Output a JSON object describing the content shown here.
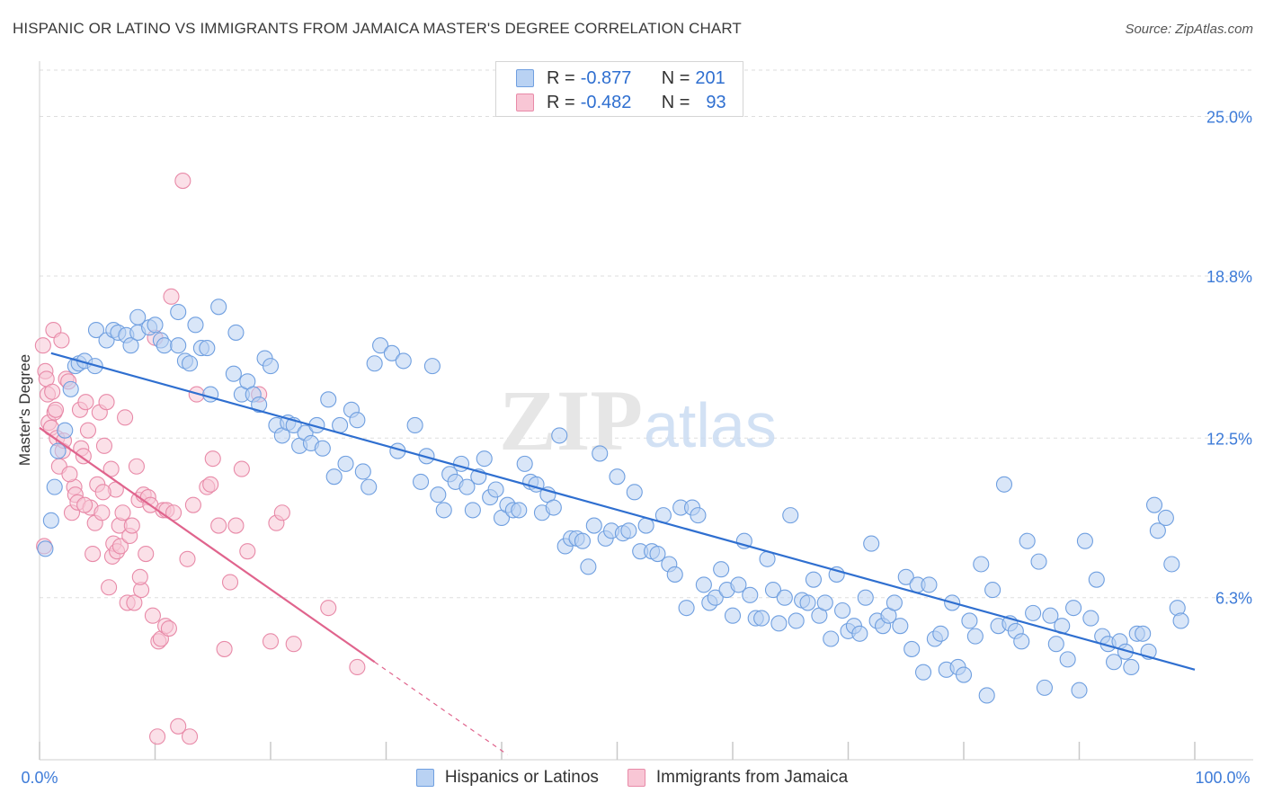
{
  "title": "HISPANIC OR LATINO VS IMMIGRANTS FROM JAMAICA MASTER'S DEGREE CORRELATION CHART",
  "source": "Source: ZipAtlas.com",
  "watermark": {
    "zip": "ZIP",
    "atlas": "atlas"
  },
  "legend_top": {
    "rows": [
      {
        "r_label": "R = ",
        "r_value": "-0.877",
        "n_label": "N = ",
        "n_value": "201",
        "color": "blue"
      },
      {
        "r_label": "R = ",
        "r_value": "-0.482",
        "n_label": "N = ",
        "n_value": "93",
        "color": "pink"
      }
    ]
  },
  "legend_bottom": [
    "Hispanics or Latinos",
    "Immigrants from Jamaica"
  ],
  "colors": {
    "blue_fill": "#b9d2f3",
    "blue_stroke": "#6f9fe0",
    "blue_line": "#2f6fd0",
    "pink_fill": "#f8c6d5",
    "pink_stroke": "#e88aa8",
    "pink_line": "#e0648d",
    "tick_label": "#3d7bd8",
    "grid": "#dddddd"
  },
  "chart_data": {
    "type": "scatter",
    "title": "HISPANIC OR LATINO VS IMMIGRANTS FROM JAMAICA MASTER'S DEGREE CORRELATION CHART",
    "xlabel": "",
    "ylabel": "Master's Degree",
    "xlim": [
      0,
      100
    ],
    "ylim": [
      0,
      26.8
    ],
    "x_tick_labels": [
      "0.0%",
      "100.0%"
    ],
    "y_ticks": [
      6.3,
      12.5,
      18.8,
      25.0
    ],
    "y_tick_labels": [
      "6.3%",
      "12.5%",
      "18.8%",
      "25.0%"
    ],
    "grid": true,
    "series": [
      {
        "name": "Hispanics or Latinos",
        "color": "blue",
        "trend": {
          "x": [
            1,
            100
          ],
          "y": [
            15.8,
            3.5
          ]
        },
        "points": [
          [
            0.5,
            8.2
          ],
          [
            1,
            9.3
          ],
          [
            1.3,
            10.6
          ],
          [
            1.6,
            12
          ],
          [
            2.2,
            12.8
          ],
          [
            2.7,
            14.4
          ],
          [
            3.1,
            15.3
          ],
          [
            3.4,
            15.4
          ],
          [
            3.9,
            15.5
          ],
          [
            4.8,
            15.3
          ],
          [
            4.9,
            16.7
          ],
          [
            5.8,
            16.3
          ],
          [
            6.4,
            16.7
          ],
          [
            6.8,
            16.6
          ],
          [
            7.5,
            16.5
          ],
          [
            7.9,
            16.1
          ],
          [
            8.5,
            16.6
          ],
          [
            8.5,
            17.2
          ],
          [
            9.5,
            16.8
          ],
          [
            10,
            16.9
          ],
          [
            10.5,
            16.3
          ],
          [
            10.8,
            16.1
          ],
          [
            12,
            17.4
          ],
          [
            12,
            16.1
          ],
          [
            12.6,
            15.5
          ],
          [
            13,
            15.4
          ],
          [
            13.5,
            16.9
          ],
          [
            14,
            16
          ],
          [
            14.5,
            16
          ],
          [
            14.8,
            14.2
          ],
          [
            15.5,
            17.6
          ],
          [
            16.8,
            15
          ],
          [
            17,
            16.6
          ],
          [
            17.5,
            14.2
          ],
          [
            18,
            14.7
          ],
          [
            18.5,
            14.2
          ],
          [
            19,
            13.8
          ],
          [
            19.5,
            15.6
          ],
          [
            20,
            15.3
          ],
          [
            20.5,
            13
          ],
          [
            21,
            12.6
          ],
          [
            21.5,
            13.1
          ],
          [
            22,
            13
          ],
          [
            22.5,
            12.2
          ],
          [
            23,
            12.7
          ],
          [
            23.5,
            12.3
          ],
          [
            24,
            13
          ],
          [
            24.5,
            12.1
          ],
          [
            25,
            14
          ],
          [
            25.5,
            11
          ],
          [
            26,
            13
          ],
          [
            26.5,
            11.5
          ],
          [
            27,
            13.6
          ],
          [
            27.5,
            13.2
          ],
          [
            28,
            11.2
          ],
          [
            28.5,
            10.6
          ],
          [
            29,
            15.4
          ],
          [
            29.5,
            16.1
          ],
          [
            30.5,
            15.8
          ],
          [
            31,
            12
          ],
          [
            31.5,
            15.5
          ],
          [
            32.5,
            13
          ],
          [
            33,
            10.8
          ],
          [
            33.5,
            11.8
          ],
          [
            34,
            15.3
          ],
          [
            34.5,
            10.3
          ],
          [
            35,
            9.7
          ],
          [
            35.5,
            11.1
          ],
          [
            36,
            10.8
          ],
          [
            36.5,
            11.5
          ],
          [
            37,
            10.6
          ],
          [
            37.5,
            9.7
          ],
          [
            38,
            11
          ],
          [
            38.5,
            11.7
          ],
          [
            39,
            10.2
          ],
          [
            39.5,
            10.5
          ],
          [
            40,
            9.4
          ],
          [
            40.5,
            9.9
          ],
          [
            41,
            9.7
          ],
          [
            41.5,
            9.7
          ],
          [
            42,
            11.5
          ],
          [
            42.5,
            10.8
          ],
          [
            43,
            10.7
          ],
          [
            43.5,
            9.6
          ],
          [
            44,
            10.3
          ],
          [
            44.5,
            9.8
          ],
          [
            45,
            12.6
          ],
          [
            45.5,
            8.3
          ],
          [
            46,
            8.6
          ],
          [
            46.5,
            8.6
          ],
          [
            47,
            8.5
          ],
          [
            47.5,
            7.5
          ],
          [
            48,
            9.1
          ],
          [
            48.5,
            11.9
          ],
          [
            49,
            8.6
          ],
          [
            49.5,
            8.9
          ],
          [
            50,
            11
          ],
          [
            50.5,
            8.8
          ],
          [
            51,
            8.9
          ],
          [
            51.5,
            10.4
          ],
          [
            52,
            8.1
          ],
          [
            52.5,
            9.1
          ],
          [
            53,
            8.1
          ],
          [
            53.5,
            8
          ],
          [
            54,
            9.5
          ],
          [
            54.5,
            7.6
          ],
          [
            55,
            7.2
          ],
          [
            55.5,
            9.8
          ],
          [
            56,
            5.9
          ],
          [
            56.5,
            9.8
          ],
          [
            57,
            9.5
          ],
          [
            57.5,
            6.8
          ],
          [
            58,
            6.1
          ],
          [
            58.5,
            6.3
          ],
          [
            59,
            7.4
          ],
          [
            59.5,
            6.6
          ],
          [
            60,
            5.6
          ],
          [
            60.5,
            6.8
          ],
          [
            61,
            8.5
          ],
          [
            61.5,
            6.4
          ],
          [
            62,
            5.5
          ],
          [
            62.5,
            5.5
          ],
          [
            63,
            7.8
          ],
          [
            63.5,
            6.6
          ],
          [
            64,
            5.3
          ],
          [
            64.5,
            6.3
          ],
          [
            65,
            9.5
          ],
          [
            65.5,
            5.4
          ],
          [
            66,
            6.2
          ],
          [
            66.5,
            6.1
          ],
          [
            67,
            7
          ],
          [
            67.5,
            5.6
          ],
          [
            68,
            6.1
          ],
          [
            68.5,
            4.7
          ],
          [
            69,
            7.2
          ],
          [
            69.5,
            5.8
          ],
          [
            70,
            5
          ],
          [
            70.5,
            5.2
          ],
          [
            71,
            4.9
          ],
          [
            71.5,
            6.3
          ],
          [
            72,
            8.4
          ],
          [
            72.5,
            5.4
          ],
          [
            73,
            5.2
          ],
          [
            73.5,
            5.6
          ],
          [
            74,
            6.1
          ],
          [
            74.5,
            5.2
          ],
          [
            75,
            7.1
          ],
          [
            75.5,
            4.3
          ],
          [
            76,
            6.8
          ],
          [
            76.5,
            3.4
          ],
          [
            77,
            6.8
          ],
          [
            77.5,
            4.7
          ],
          [
            78,
            4.9
          ],
          [
            78.5,
            3.5
          ],
          [
            79,
            6.1
          ],
          [
            79.5,
            3.6
          ],
          [
            80,
            3.3
          ],
          [
            80.5,
            5.4
          ],
          [
            81,
            4.8
          ],
          [
            81.5,
            7.6
          ],
          [
            82,
            2.5
          ],
          [
            82.5,
            6.6
          ],
          [
            83,
            5.2
          ],
          [
            83.5,
            10.7
          ],
          [
            84,
            5.3
          ],
          [
            84.5,
            5
          ],
          [
            85,
            4.6
          ],
          [
            85.5,
            8.5
          ],
          [
            86,
            5.7
          ],
          [
            86.5,
            7.7
          ],
          [
            87,
            2.8
          ],
          [
            87.5,
            5.6
          ],
          [
            88,
            4.5
          ],
          [
            88.5,
            5.2
          ],
          [
            89,
            3.9
          ],
          [
            89.5,
            5.9
          ],
          [
            90,
            2.7
          ],
          [
            90.5,
            8.5
          ],
          [
            91,
            5.5
          ],
          [
            91.5,
            7
          ],
          [
            92,
            4.8
          ],
          [
            92.5,
            4.5
          ],
          [
            93,
            3.8
          ],
          [
            93.5,
            4.6
          ],
          [
            94,
            4.2
          ],
          [
            94.5,
            3.6
          ],
          [
            95,
            4.9
          ],
          [
            95.5,
            4.9
          ],
          [
            96,
            4.2
          ],
          [
            96.5,
            9.9
          ],
          [
            96.8,
            8.9
          ],
          [
            97.5,
            9.4
          ],
          [
            98,
            7.6
          ],
          [
            98.5,
            5.9
          ],
          [
            98.8,
            5.4
          ]
        ]
      },
      {
        "name": "Immigrants from Jamaica",
        "color": "pink",
        "trend": {
          "x": [
            0,
            29
          ],
          "y": [
            12.9,
            3.8
          ]
        },
        "trend_dashed": {
          "x": [
            29,
            40.5
          ],
          "y": [
            3.8,
            0.2
          ]
        },
        "points": [
          [
            0.3,
            16.1
          ],
          [
            0.5,
            15.1
          ],
          [
            0.6,
            14.8
          ],
          [
            0.7,
            14.2
          ],
          [
            0.8,
            13.1
          ],
          [
            1,
            12.9
          ],
          [
            1.2,
            16.7
          ],
          [
            1.3,
            13.5
          ],
          [
            1.4,
            13.6
          ],
          [
            1.5,
            12.5
          ],
          [
            1.7,
            11.4
          ],
          [
            1.9,
            16.3
          ],
          [
            2,
            12
          ],
          [
            2.1,
            12.4
          ],
          [
            2.3,
            14.8
          ],
          [
            2.5,
            14.7
          ],
          [
            2.8,
            9.6
          ],
          [
            3,
            10.6
          ],
          [
            3.1,
            10.3
          ],
          [
            3.3,
            10
          ],
          [
            3.5,
            13.6
          ],
          [
            3.6,
            12.1
          ],
          [
            3.8,
            11.8
          ],
          [
            4,
            13.9
          ],
          [
            4.2,
            12.8
          ],
          [
            4.4,
            9.8
          ],
          [
            4.6,
            8
          ],
          [
            4.8,
            9.2
          ],
          [
            5,
            10.7
          ],
          [
            5.2,
            13.5
          ],
          [
            5.4,
            9.6
          ],
          [
            5.6,
            12.2
          ],
          [
            5.8,
            13.9
          ],
          [
            6,
            6.7
          ],
          [
            6.2,
            11.3
          ],
          [
            6.3,
            7.9
          ],
          [
            6.4,
            8.4
          ],
          [
            6.6,
            10.5
          ],
          [
            6.7,
            8.1
          ],
          [
            6.9,
            9.1
          ],
          [
            7,
            8.3
          ],
          [
            7.2,
            9.6
          ],
          [
            7.4,
            13.3
          ],
          [
            7.6,
            6.1
          ],
          [
            7.8,
            8.7
          ],
          [
            8,
            9.1
          ],
          [
            8.2,
            6.1
          ],
          [
            8.4,
            11.4
          ],
          [
            8.6,
            10.1
          ],
          [
            8.8,
            6.6
          ],
          [
            9,
            10.3
          ],
          [
            9.2,
            8
          ],
          [
            9.4,
            10.2
          ],
          [
            9.6,
            9.9
          ],
          [
            9.8,
            5.6
          ],
          [
            10,
            16.4
          ],
          [
            10.2,
            0.9
          ],
          [
            10.3,
            4.6
          ],
          [
            10.5,
            4.7
          ],
          [
            10.7,
            9.7
          ],
          [
            10.9,
            5.2
          ],
          [
            11,
            9.7
          ],
          [
            11.2,
            5.1
          ],
          [
            11.4,
            18
          ],
          [
            11.6,
            9.6
          ],
          [
            12,
            1.3
          ],
          [
            12.4,
            22.5
          ],
          [
            12.8,
            7.8
          ],
          [
            13,
            0.9
          ],
          [
            13.3,
            9.9
          ],
          [
            13.6,
            14.2
          ],
          [
            14.5,
            10.6
          ],
          [
            14.8,
            10.7
          ],
          [
            15,
            11.7
          ],
          [
            15.5,
            9.1
          ],
          [
            16,
            4.3
          ],
          [
            16.5,
            6.9
          ],
          [
            17,
            9.1
          ],
          [
            17.5,
            11.3
          ],
          [
            18,
            8.1
          ],
          [
            19,
            14.2
          ],
          [
            20,
            4.6
          ],
          [
            20.5,
            9.2
          ],
          [
            21,
            9.6
          ],
          [
            22,
            4.5
          ],
          [
            25,
            5.9
          ],
          [
            27.5,
            3.6
          ],
          [
            0.4,
            8.3
          ],
          [
            1.1,
            14.3
          ],
          [
            2.6,
            11.1
          ],
          [
            3.9,
            9.9
          ],
          [
            5.5,
            10.4
          ],
          [
            8.7,
            7.1
          ]
        ]
      }
    ]
  }
}
